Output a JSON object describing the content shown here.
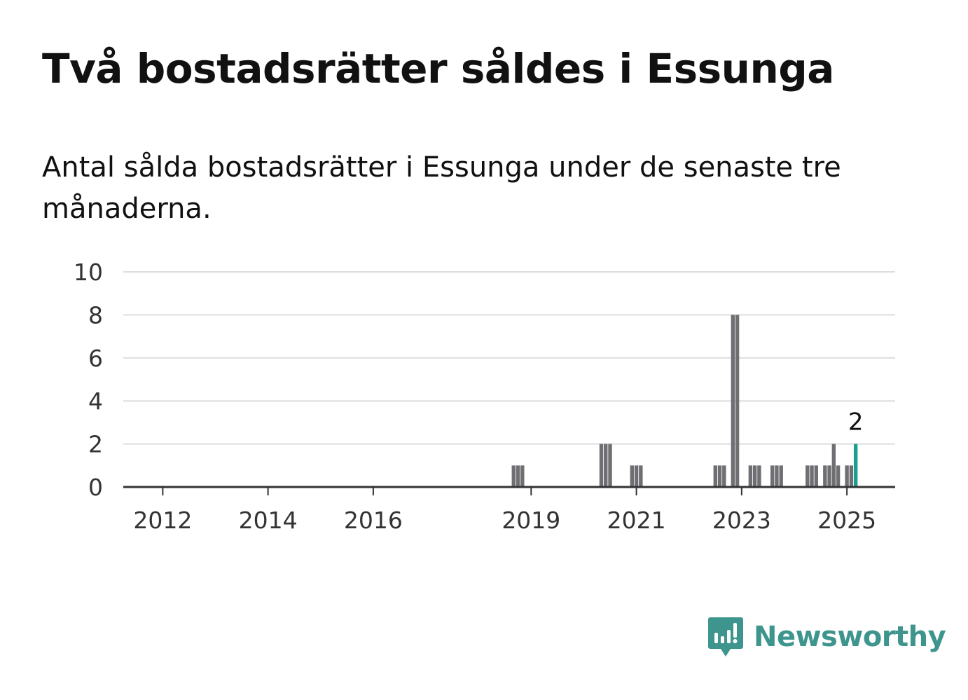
{
  "header": {
    "title": "Två bostadsrätter såldes i Essunga",
    "subtitle": "Antal sålda bostadsrätter i Essunga under de senaste tre månaderna."
  },
  "brand": {
    "name": "Newsworthy",
    "icon": "newsworthy-logo-icon",
    "color": "#3d958d"
  },
  "colors": {
    "bar": "#6e6e73",
    "highlight": "#1a9e90",
    "grid": "#dddddd",
    "axis": "#333333"
  },
  "chart_data": {
    "type": "bar",
    "ylim": [
      0,
      10
    ],
    "yticks": [
      0,
      2,
      4,
      6,
      8,
      10
    ],
    "xlim": [
      "2011-04",
      "2025-12"
    ],
    "xticks": [
      {
        "label": "2012",
        "date": "2012-01"
      },
      {
        "label": "2014",
        "date": "2014-01"
      },
      {
        "label": "2016",
        "date": "2016-01"
      },
      {
        "label": "2019",
        "date": "2019-01"
      },
      {
        "label": "2021",
        "date": "2021-01"
      },
      {
        "label": "2023",
        "date": "2023-01"
      },
      {
        "label": "2025",
        "date": "2025-01"
      }
    ],
    "grid": true,
    "bars": [
      {
        "date": "2018-09",
        "value": 1
      },
      {
        "date": "2018-10",
        "value": 1
      },
      {
        "date": "2018-11",
        "value": 1
      },
      {
        "date": "2020-05",
        "value": 2
      },
      {
        "date": "2020-06",
        "value": 2
      },
      {
        "date": "2020-07",
        "value": 2
      },
      {
        "date": "2020-12",
        "value": 1
      },
      {
        "date": "2021-01",
        "value": 1
      },
      {
        "date": "2021-02",
        "value": 1
      },
      {
        "date": "2022-07",
        "value": 1
      },
      {
        "date": "2022-08",
        "value": 1
      },
      {
        "date": "2022-09",
        "value": 1
      },
      {
        "date": "2022-11",
        "value": 8
      },
      {
        "date": "2022-12",
        "value": 8
      },
      {
        "date": "2023-01",
        "value": 0
      },
      {
        "date": "2023-03",
        "value": 1
      },
      {
        "date": "2023-04",
        "value": 1
      },
      {
        "date": "2023-05",
        "value": 1
      },
      {
        "date": "2023-08",
        "value": 1
      },
      {
        "date": "2023-09",
        "value": 1
      },
      {
        "date": "2023-10",
        "value": 1
      },
      {
        "date": "2024-04",
        "value": 1
      },
      {
        "date": "2024-05",
        "value": 1
      },
      {
        "date": "2024-06",
        "value": 1
      },
      {
        "date": "2024-08",
        "value": 1
      },
      {
        "date": "2024-09",
        "value": 1
      },
      {
        "date": "2024-10",
        "value": 2
      },
      {
        "date": "2024-11",
        "value": 1
      },
      {
        "date": "2025-01",
        "value": 1
      },
      {
        "date": "2025-02",
        "value": 1
      },
      {
        "date": "2025-03",
        "value": 2,
        "highlight": true
      }
    ],
    "annotation": {
      "date": "2025-03",
      "value": 2,
      "label": "2"
    }
  }
}
